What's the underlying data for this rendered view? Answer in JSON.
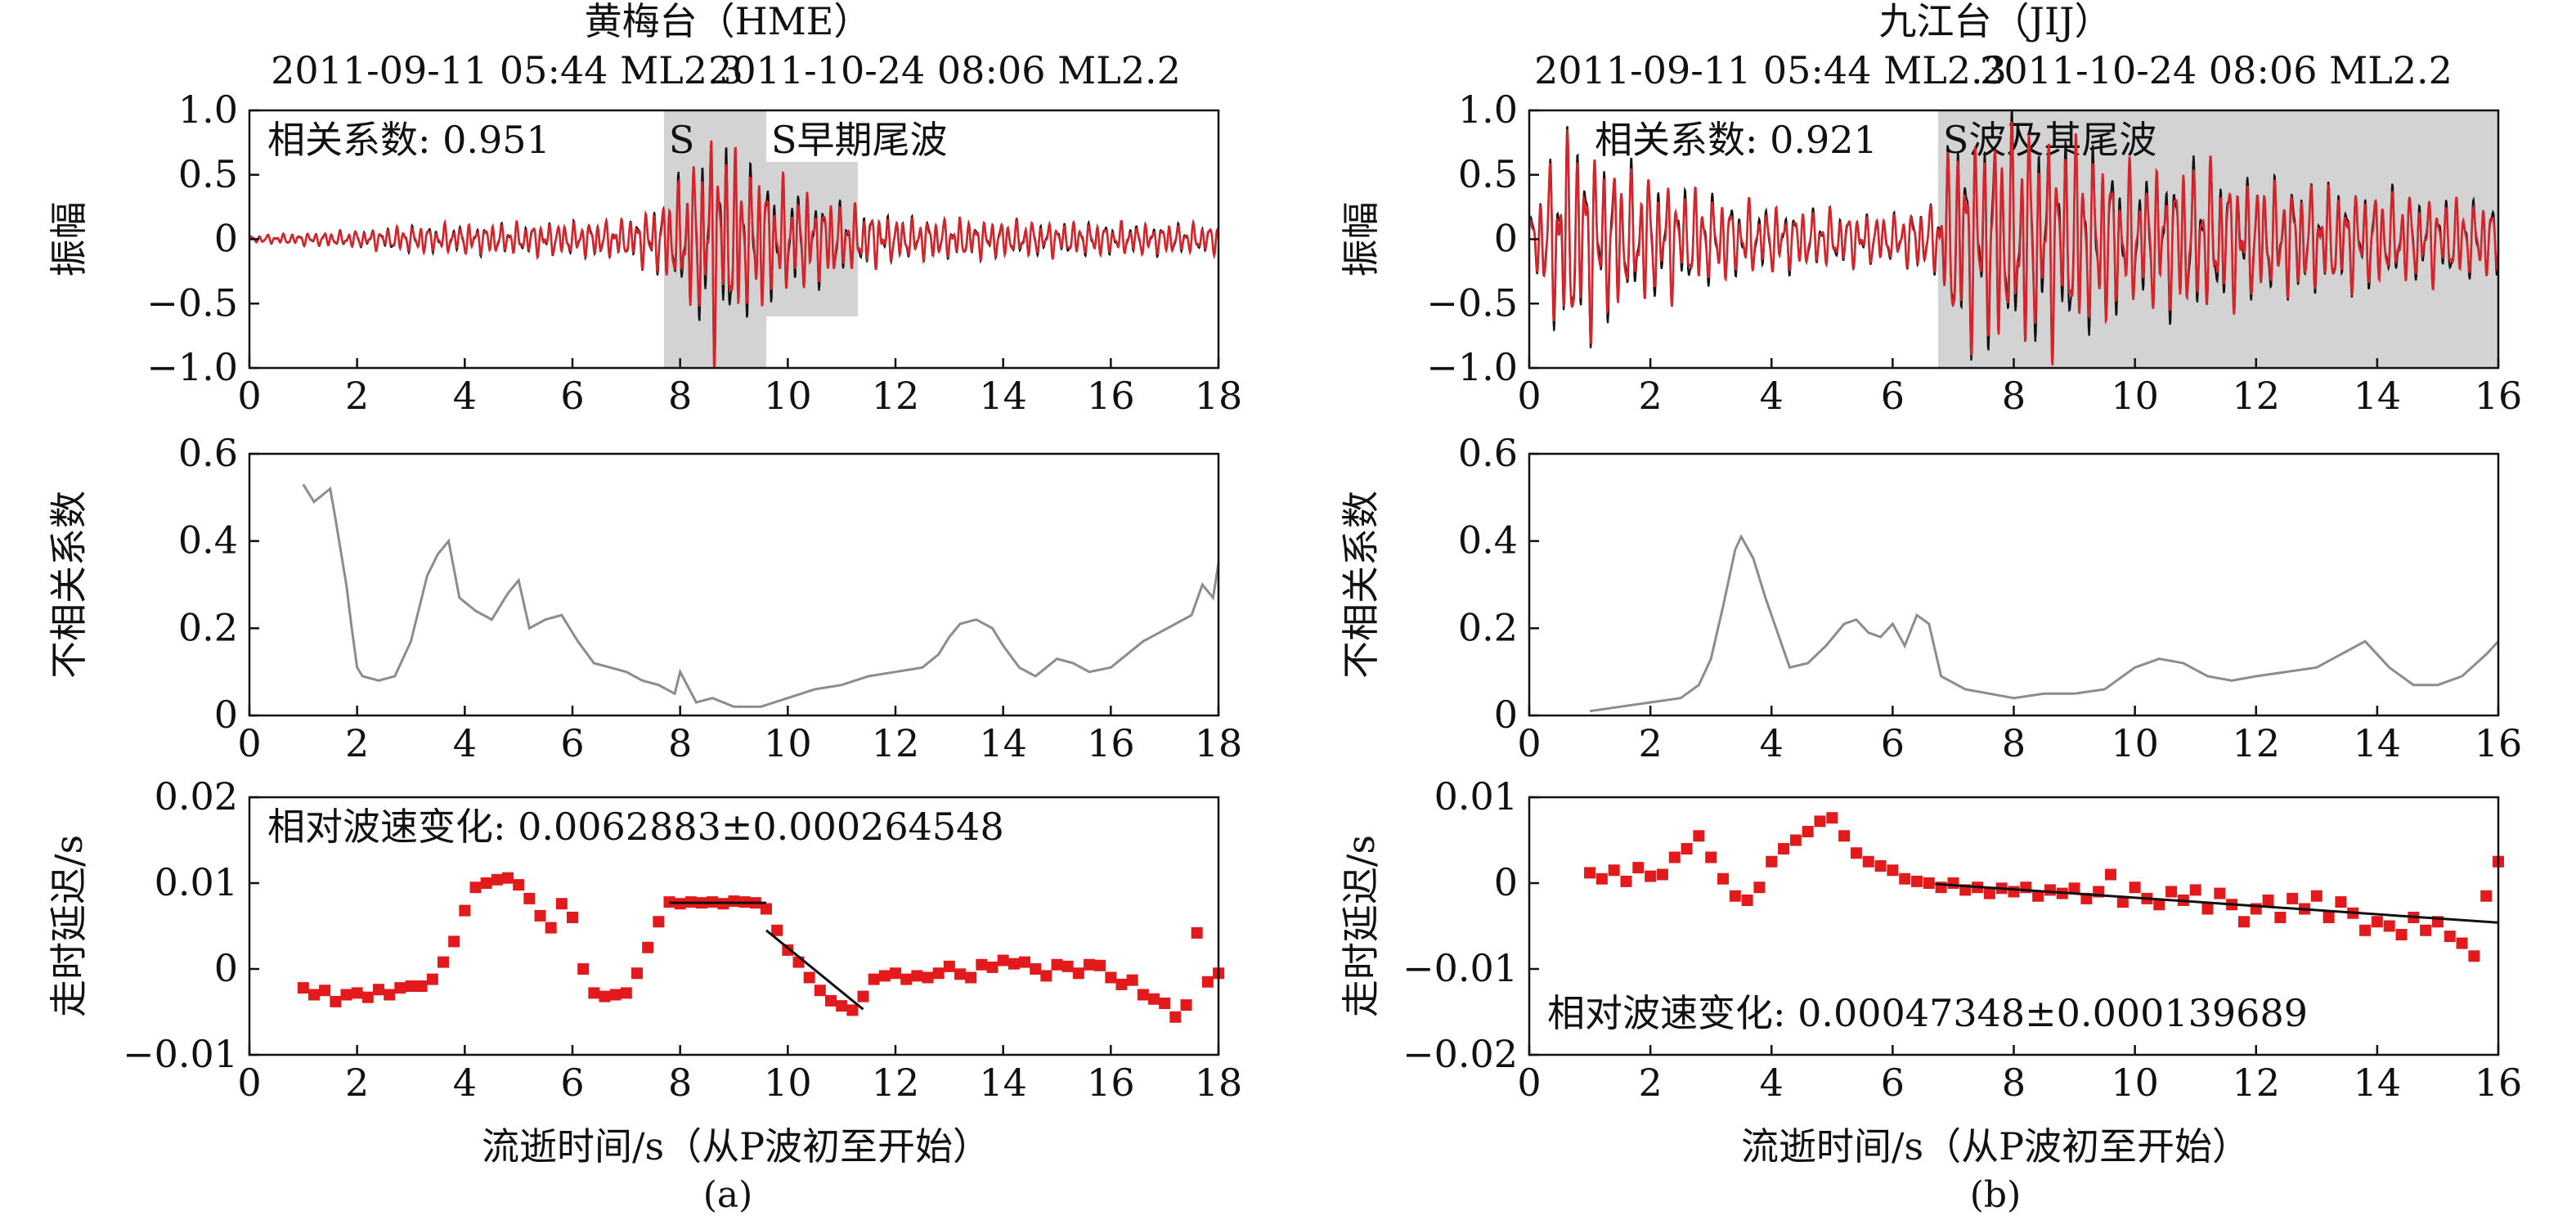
{
  "figure": {
    "panel_a": {
      "station": "黄梅台（HME）",
      "event1": "2011-09-11 05:44 ML2.3",
      "event2": "2011-10-24 08:06 ML2.2",
      "sublabel": "(a)",
      "xlabel": "流逝时间/s（从P波初至开始）"
    },
    "panel_b": {
      "station": "九江台（JIJ）",
      "event1": "2011-09-11 05:44 ML2.3",
      "event2": "2011-10-24 08:06 ML2.2",
      "sublabel": "(b)",
      "xlabel": "流逝时间/s（从P波初至开始）"
    }
  },
  "colors": {
    "event1_trace": "#111111",
    "event2_trace": "#d9232a",
    "decorrelation": "#8c8c8c",
    "delay_points": "#e31a1c",
    "shade": "#d3d3d3"
  },
  "chart_data": [
    {
      "id": "a-waveform",
      "type": "line",
      "ylabel": "振幅",
      "xlim": [
        0,
        18
      ],
      "ylim": [
        -1.0,
        1.0
      ],
      "xticks": [
        "0",
        "2",
        "4",
        "6",
        "8",
        "10",
        "12",
        "14",
        "16",
        "18"
      ],
      "yticks": [
        "−1.0",
        "−0.5",
        "0",
        "0.5",
        "1.0"
      ],
      "annotation": "相关系数: 0.951",
      "shaded_windows": [
        {
          "label": "S",
          "x": [
            7.7,
            9.6
          ],
          "y": [
            -1.0,
            1.0
          ]
        },
        {
          "label": "S早期尾波",
          "x": [
            9.6,
            11.3
          ],
          "y": [
            -0.6,
            0.6
          ]
        }
      ],
      "series": [
        {
          "envelope": [
            [
              0,
              0.03
            ],
            [
              1,
              0.05
            ],
            [
              2,
              0.07
            ],
            [
              3,
              0.11
            ],
            [
              4,
              0.12
            ],
            [
              5,
              0.13
            ],
            [
              6,
              0.14
            ],
            [
              7,
              0.16
            ],
            [
              7.7,
              0.32
            ],
            [
              8.2,
              0.6
            ],
            [
              8.6,
              0.95
            ],
            [
              9.2,
              0.65
            ],
            [
              10,
              0.45
            ],
            [
              11,
              0.3
            ],
            [
              12,
              0.18
            ],
            [
              14,
              0.15
            ],
            [
              16,
              0.13
            ],
            [
              18,
              0.12
            ]
          ]
        }
      ]
    },
    {
      "id": "a-decorrelation",
      "type": "line",
      "ylabel": "不相关系数",
      "xlim": [
        0,
        18
      ],
      "ylim": [
        0,
        0.6
      ],
      "xticks": [
        "0",
        "2",
        "4",
        "6",
        "8",
        "10",
        "12",
        "14",
        "16",
        "18"
      ],
      "yticks": [
        "0",
        "0.2",
        "0.4",
        "0.6"
      ],
      "x": [
        1.0,
        1.2,
        1.4,
        1.5,
        1.6,
        1.8,
        1.9,
        2.0,
        2.1,
        2.4,
        2.7,
        3.0,
        3.3,
        3.5,
        3.7,
        3.9,
        4.2,
        4.5,
        4.8,
        5.0,
        5.2,
        5.5,
        5.8,
        6.1,
        6.4,
        6.7,
        7.0,
        7.3,
        7.6,
        7.9,
        8.0,
        8.3,
        8.6,
        9.0,
        9.5,
        10.0,
        10.5,
        11.0,
        11.5,
        12.0,
        12.5,
        12.8,
        13.0,
        13.2,
        13.5,
        13.8,
        14.0,
        14.3,
        14.6,
        15.0,
        15.3,
        15.6,
        16.0,
        16.3,
        16.6,
        16.9,
        17.2,
        17.5,
        17.7,
        17.9,
        18.0
      ],
      "y": [
        0.53,
        0.49,
        0.51,
        0.52,
        0.45,
        0.3,
        0.2,
        0.11,
        0.09,
        0.08,
        0.09,
        0.17,
        0.32,
        0.37,
        0.4,
        0.27,
        0.24,
        0.22,
        0.28,
        0.31,
        0.2,
        0.22,
        0.23,
        0.17,
        0.12,
        0.11,
        0.1,
        0.08,
        0.07,
        0.05,
        0.1,
        0.03,
        0.04,
        0.02,
        0.02,
        0.04,
        0.06,
        0.07,
        0.09,
        0.1,
        0.11,
        0.14,
        0.18,
        0.21,
        0.22,
        0.2,
        0.16,
        0.11,
        0.09,
        0.13,
        0.12,
        0.1,
        0.11,
        0.14,
        0.17,
        0.19,
        0.21,
        0.23,
        0.3,
        0.27,
        0.35
      ]
    },
    {
      "id": "a-delay",
      "type": "scatter",
      "ylabel": "走时延迟/s",
      "xlabel": "流逝时间/s（从P波初至开始）",
      "xlim": [
        0,
        18
      ],
      "ylim": [
        -0.01,
        0.02
      ],
      "xticks": [
        "0",
        "2",
        "4",
        "6",
        "8",
        "10",
        "12",
        "14",
        "16",
        "18"
      ],
      "yticks": [
        "−0.01",
        "0",
        "0.01",
        "0.02"
      ],
      "annotation": "相对波速变化: 0.0062883±0.000264548",
      "fit_lines": [
        {
          "x": [
            7.8,
            9.6
          ],
          "y": [
            0.0077,
            0.0077
          ]
        },
        {
          "x": [
            9.6,
            11.4
          ],
          "y": [
            0.0045,
            -0.0047
          ]
        }
      ],
      "points": {
        "x": [
          1.0,
          1.2,
          1.4,
          1.6,
          1.8,
          2.0,
          2.2,
          2.4,
          2.6,
          2.8,
          3.0,
          3.2,
          3.4,
          3.6,
          3.8,
          4.0,
          4.2,
          4.4,
          4.6,
          4.8,
          5.0,
          5.2,
          5.4,
          5.6,
          5.8,
          6.0,
          6.2,
          6.4,
          6.6,
          6.8,
          7.0,
          7.2,
          7.4,
          7.6,
          7.8,
          8.0,
          8.2,
          8.4,
          8.6,
          8.8,
          9.0,
          9.2,
          9.4,
          9.6,
          9.8,
          10.0,
          10.2,
          10.4,
          10.6,
          10.8,
          11.0,
          11.2,
          11.4,
          11.6,
          11.8,
          12.0,
          12.2,
          12.4,
          12.6,
          12.8,
          13.0,
          13.2,
          13.4,
          13.6,
          13.8,
          14.0,
          14.2,
          14.4,
          14.6,
          14.8,
          15.0,
          15.2,
          15.4,
          15.6,
          15.8,
          16.0,
          16.2,
          16.4,
          16.6,
          16.8,
          17.0,
          17.2,
          17.4,
          17.6,
          17.8,
          18.0
        ],
        "y": [
          -0.0022,
          -0.003,
          -0.0025,
          -0.0038,
          -0.003,
          -0.0028,
          -0.0033,
          -0.0024,
          -0.003,
          -0.0022,
          -0.002,
          -0.002,
          -0.0012,
          0.0008,
          0.0032,
          0.0068,
          0.0095,
          0.01,
          0.0104,
          0.0106,
          0.0098,
          0.0082,
          0.0062,
          0.0048,
          0.0076,
          0.006,
          0.0,
          -0.0028,
          -0.0032,
          -0.003,
          -0.0028,
          -0.0005,
          0.0025,
          0.0055,
          0.0078,
          0.0076,
          0.0078,
          0.0077,
          0.0078,
          0.0076,
          0.0079,
          0.0078,
          0.0077,
          0.007,
          0.0045,
          0.0022,
          0.0008,
          -0.001,
          -0.0025,
          -0.0037,
          -0.0043,
          -0.0048,
          -0.0032,
          -0.0012,
          -0.0008,
          -0.0005,
          -0.0012,
          -0.0008,
          -0.001,
          -0.0005,
          0.0003,
          -0.0006,
          -0.001,
          0.0005,
          0.0002,
          0.001,
          0.0006,
          0.0008,
          0.0,
          -0.0008,
          0.0005,
          0.0003,
          -0.0005,
          0.0005,
          0.0004,
          -0.001,
          -0.0018,
          -0.0013,
          -0.003,
          -0.0035,
          -0.004,
          -0.0056,
          -0.0042,
          0.0042,
          -0.0015,
          -0.0005
        ]
      }
    },
    {
      "id": "b-waveform",
      "type": "line",
      "ylabel": "振幅",
      "xlim": [
        0,
        16
      ],
      "ylim": [
        -1.0,
        1.0
      ],
      "xticks": [
        "0",
        "2",
        "4",
        "6",
        "8",
        "10",
        "12",
        "14",
        "16"
      ],
      "yticks": [
        "−1.0",
        "−0.5",
        "0",
        "0.5",
        "1.0"
      ],
      "annotation": "相关系数: 0.921",
      "shaded_windows": [
        {
          "label": "S波及其尾波",
          "x": [
            6.75,
            16.0
          ],
          "y": [
            -1.0,
            1.0
          ]
        }
      ],
      "series": [
        {
          "envelope": [
            [
              0,
              0.2
            ],
            [
              0.25,
              0.5
            ],
            [
              0.5,
              0.9
            ],
            [
              1.0,
              0.8
            ],
            [
              1.5,
              0.6
            ],
            [
              2.5,
              0.45
            ],
            [
              3.5,
              0.3
            ],
            [
              4.5,
              0.25
            ],
            [
              6.0,
              0.2
            ],
            [
              6.7,
              0.3
            ],
            [
              7.0,
              0.85
            ],
            [
              8.0,
              0.95
            ],
            [
              9.0,
              0.85
            ],
            [
              10.0,
              0.55
            ],
            [
              11.0,
              0.65
            ],
            [
              12.0,
              0.5
            ],
            [
              14.0,
              0.4
            ],
            [
              16.0,
              0.3
            ]
          ]
        }
      ]
    },
    {
      "id": "b-decorrelation",
      "type": "line",
      "ylabel": "不相关系数",
      "xlim": [
        0,
        16
      ],
      "ylim": [
        0,
        0.6
      ],
      "xticks": [
        "0",
        "2",
        "4",
        "6",
        "8",
        "10",
        "12",
        "14",
        "16"
      ],
      "yticks": [
        "0",
        "0.2",
        "0.4",
        "0.6"
      ],
      "x": [
        1.0,
        1.5,
        2.0,
        2.5,
        2.8,
        3.0,
        3.2,
        3.4,
        3.5,
        3.7,
        3.9,
        4.1,
        4.3,
        4.6,
        4.9,
        5.2,
        5.4,
        5.6,
        5.8,
        6.0,
        6.2,
        6.4,
        6.6,
        6.8,
        7.2,
        7.6,
        8.0,
        8.5,
        9.0,
        9.5,
        10.0,
        10.4,
        10.8,
        11.2,
        11.6,
        12.0,
        12.5,
        13.0,
        13.4,
        13.8,
        14.2,
        14.6,
        15.0,
        15.4,
        15.8,
        16.0
      ],
      "y": [
        0.01,
        0.02,
        0.03,
        0.04,
        0.07,
        0.13,
        0.25,
        0.38,
        0.41,
        0.36,
        0.27,
        0.19,
        0.11,
        0.12,
        0.16,
        0.21,
        0.22,
        0.19,
        0.18,
        0.21,
        0.16,
        0.23,
        0.21,
        0.09,
        0.06,
        0.05,
        0.04,
        0.05,
        0.05,
        0.06,
        0.11,
        0.13,
        0.12,
        0.09,
        0.08,
        0.09,
        0.1,
        0.11,
        0.14,
        0.17,
        0.11,
        0.07,
        0.07,
        0.09,
        0.14,
        0.17
      ]
    },
    {
      "id": "b-delay",
      "type": "scatter",
      "ylabel": "走时延迟/s",
      "xlabel": "流逝时间/s（从P波初至开始）",
      "xlim": [
        0,
        16
      ],
      "ylim": [
        -0.02,
        0.01
      ],
      "xticks": [
        "0",
        "2",
        "4",
        "6",
        "8",
        "10",
        "12",
        "14",
        "16"
      ],
      "yticks": [
        "−0.02",
        "−0.01",
        "0",
        "0.01"
      ],
      "annotation": "相对波速变化: 0.00047348±0.000139689",
      "fit_lines": [
        {
          "x": [
            6.7,
            16.0
          ],
          "y": [
            -0.0001,
            -0.0046
          ]
        }
      ],
      "points": {
        "x": [
          1.0,
          1.2,
          1.4,
          1.6,
          1.8,
          2.0,
          2.2,
          2.4,
          2.6,
          2.8,
          3.0,
          3.2,
          3.4,
          3.6,
          3.8,
          4.0,
          4.2,
          4.4,
          4.6,
          4.8,
          5.0,
          5.2,
          5.4,
          5.6,
          5.8,
          6.0,
          6.2,
          6.4,
          6.6,
          6.8,
          7.0,
          7.2,
          7.4,
          7.6,
          7.8,
          8.0,
          8.2,
          8.4,
          8.6,
          8.8,
          9.0,
          9.2,
          9.4,
          9.6,
          9.8,
          10.0,
          10.2,
          10.4,
          10.6,
          10.8,
          11.0,
          11.2,
          11.4,
          11.6,
          11.8,
          12.0,
          12.2,
          12.4,
          12.6,
          12.8,
          13.0,
          13.2,
          13.4,
          13.6,
          13.8,
          14.0,
          14.2,
          14.4,
          14.6,
          14.8,
          15.0,
          15.2,
          15.4,
          15.6,
          15.8,
          16.0
        ],
        "y": [
          0.0012,
          0.0005,
          0.0015,
          0.0002,
          0.0018,
          0.0008,
          0.001,
          0.003,
          0.004,
          0.0055,
          0.003,
          0.0005,
          -0.0015,
          -0.002,
          -0.0005,
          0.0025,
          0.004,
          0.005,
          0.006,
          0.0072,
          0.0076,
          0.0055,
          0.0035,
          0.0025,
          0.002,
          0.0015,
          0.0005,
          0.0002,
          0.0,
          -0.0005,
          0.0,
          -0.0008,
          -0.0005,
          -0.0012,
          -0.0006,
          -0.001,
          -0.0005,
          -0.0015,
          -0.0008,
          -0.0012,
          -0.0006,
          -0.0018,
          -0.001,
          0.001,
          -0.0022,
          -0.0005,
          -0.0018,
          -0.0025,
          -0.001,
          -0.002,
          -0.0008,
          -0.003,
          -0.0012,
          -0.0025,
          -0.0045,
          -0.003,
          -0.002,
          -0.004,
          -0.0018,
          -0.003,
          -0.0015,
          -0.004,
          -0.0022,
          -0.0035,
          -0.0055,
          -0.0045,
          -0.005,
          -0.006,
          -0.004,
          -0.0055,
          -0.0045,
          -0.0062,
          -0.007,
          -0.0085,
          -0.0015,
          0.0025
        ]
      }
    }
  ]
}
